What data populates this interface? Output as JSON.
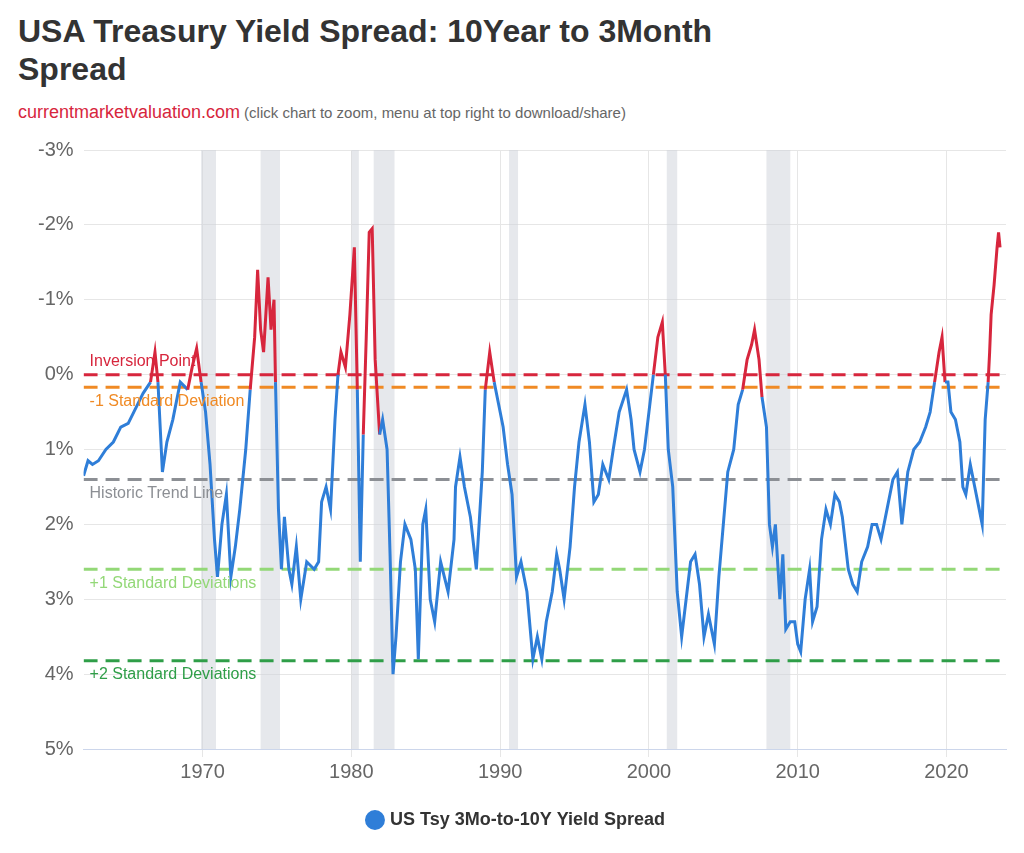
{
  "chart_data": {
    "type": "line",
    "title": "USA Treasury Yield Spread: 10Year to 3Month Spread",
    "source": "currentmarketvaluation.com",
    "subtitle": "(click chart to zoom, menu at top right to download/share)",
    "x": [
      1962.0,
      1962.3,
      1962.6,
      1963.0,
      1963.5,
      1964.0,
      1964.5,
      1965.0,
      1965.5,
      1966.0,
      1966.5,
      1966.8,
      1967.0,
      1967.3,
      1967.6,
      1968.0,
      1968.5,
      1969.0,
      1969.3,
      1969.6,
      1969.9,
      1970.2,
      1970.5,
      1970.8,
      1971.0,
      1971.3,
      1971.6,
      1971.9,
      1972.2,
      1972.5,
      1972.9,
      1973.2,
      1973.5,
      1973.7,
      1973.9,
      1974.1,
      1974.4,
      1974.6,
      1974.8,
      1974.9,
      1975.1,
      1975.3,
      1975.5,
      1975.8,
      1976.0,
      1976.3,
      1976.6,
      1977.0,
      1977.5,
      1977.8,
      1978.0,
      1978.3,
      1978.6,
      1978.9,
      1979.1,
      1979.3,
      1979.6,
      1979.9,
      1980.2,
      1980.4,
      1980.6,
      1980.8,
      1981.0,
      1981.2,
      1981.4,
      1981.6,
      1981.9,
      1982.1,
      1982.4,
      1982.6,
      1982.8,
      1983.0,
      1983.3,
      1983.6,
      1984.0,
      1984.3,
      1984.5,
      1984.8,
      1985.0,
      1985.3,
      1985.6,
      1986.0,
      1986.5,
      1986.9,
      1987.0,
      1987.3,
      1987.6,
      1988.0,
      1988.4,
      1988.8,
      1989.0,
      1989.3,
      1989.6,
      1989.9,
      1990.2,
      1990.5,
      1990.8,
      1991.1,
      1991.4,
      1991.8,
      1992.2,
      1992.5,
      1992.8,
      1993.1,
      1993.5,
      1993.8,
      1994.0,
      1994.3,
      1994.7,
      1995.0,
      1995.3,
      1995.7,
      1996.0,
      1996.3,
      1996.6,
      1996.9,
      1997.3,
      1997.6,
      1998.0,
      1998.5,
      1998.8,
      1999.0,
      1999.4,
      1999.7,
      2000.0,
      2000.3,
      2000.6,
      2000.9,
      2001.1,
      2001.3,
      2001.6,
      2001.9,
      2002.2,
      2002.5,
      2002.8,
      2003.1,
      2003.4,
      2003.7,
      2004.0,
      2004.4,
      2004.7,
      2005.0,
      2005.3,
      2005.7,
      2006.0,
      2006.3,
      2006.6,
      2006.9,
      2007.1,
      2007.4,
      2007.6,
      2007.9,
      2008.1,
      2008.3,
      2008.5,
      2008.8,
      2009.0,
      2009.2,
      2009.5,
      2009.8,
      2010.0,
      2010.2,
      2010.5,
      2010.8,
      2011.0,
      2011.3,
      2011.6,
      2011.9,
      2012.2,
      2012.5,
      2012.8,
      2013.0,
      2013.4,
      2013.7,
      2014.0,
      2014.3,
      2014.7,
      2015.0,
      2015.3,
      2015.6,
      2016.0,
      2016.4,
      2016.7,
      2017.0,
      2017.4,
      2017.8,
      2018.2,
      2018.6,
      2018.9,
      2019.2,
      2019.5,
      2019.7,
      2019.9,
      2020.1,
      2020.3,
      2020.6,
      2020.9,
      2021.1,
      2021.3,
      2021.6,
      2021.9,
      2022.2,
      2022.4,
      2022.6,
      2022.8,
      2022.9,
      2023.0,
      2023.2,
      2023.4,
      2023.5,
      2023.6
    ],
    "series": [
      {
        "name": "US Tsy 3Mo-to-10Y Yield Spread",
        "color": "#2f7ed8",
        "values": [
          1.35,
          1.15,
          1.2,
          1.15,
          1.0,
          0.9,
          0.7,
          0.65,
          0.45,
          0.25,
          0.1,
          -0.3,
          0.1,
          1.3,
          0.9,
          0.6,
          0.1,
          0.2,
          -0.1,
          -0.35,
          0.1,
          0.5,
          1.2,
          2.2,
          2.7,
          2.0,
          1.6,
          2.7,
          2.3,
          1.8,
          1.0,
          0.2,
          -0.5,
          -1.4,
          -0.6,
          -0.3,
          -1.3,
          -0.6,
          -1.0,
          0.1,
          1.8,
          2.6,
          1.9,
          2.6,
          2.8,
          2.3,
          3.0,
          2.5,
          2.6,
          2.5,
          1.7,
          1.5,
          1.8,
          0.6,
          0.0,
          -0.3,
          -0.1,
          -0.8,
          -1.7,
          0.2,
          2.5,
          0.8,
          -0.5,
          -1.9,
          -1.95,
          -0.2,
          0.8,
          0.6,
          1.0,
          2.4,
          4.0,
          3.5,
          2.5,
          2.0,
          2.2,
          2.6,
          3.8,
          2.0,
          1.8,
          3.0,
          3.3,
          2.5,
          2.9,
          2.2,
          1.5,
          1.1,
          1.5,
          1.9,
          2.6,
          1.3,
          0.2,
          -0.3,
          0.1,
          0.4,
          0.7,
          1.2,
          1.6,
          2.7,
          2.5,
          2.9,
          3.8,
          3.5,
          3.8,
          3.3,
          2.9,
          2.4,
          2.6,
          3.0,
          2.3,
          1.5,
          0.9,
          0.4,
          0.9,
          1.7,
          1.6,
          1.2,
          1.4,
          1.0,
          0.5,
          0.2,
          0.6,
          1.0,
          1.3,
          1.0,
          0.5,
          0.0,
          -0.5,
          -0.7,
          0.0,
          1.0,
          1.5,
          2.9,
          3.5,
          3.0,
          2.5,
          2.4,
          2.8,
          3.5,
          3.2,
          3.6,
          2.7,
          2.0,
          1.3,
          1.0,
          0.4,
          0.2,
          -0.2,
          -0.4,
          -0.6,
          -0.2,
          0.3,
          0.7,
          2.0,
          2.3,
          2.0,
          3.0,
          2.4,
          3.4,
          3.3,
          3.3,
          3.6,
          3.7,
          3.0,
          2.6,
          3.3,
          3.1,
          2.2,
          1.8,
          2.0,
          1.6,
          1.7,
          1.9,
          2.6,
          2.8,
          2.9,
          2.5,
          2.3,
          2.0,
          2.0,
          2.2,
          1.8,
          1.4,
          1.3,
          2.0,
          1.3,
          1.0,
          0.9,
          0.7,
          0.5,
          0.1,
          -0.3,
          -0.5,
          0.1,
          0.1,
          0.5,
          0.6,
          0.9,
          1.5,
          1.6,
          1.2,
          1.5,
          1.8,
          2.0,
          0.6,
          0.1,
          -0.3,
          -0.8,
          -1.2,
          -1.7,
          -1.9,
          -1.7
        ]
      }
    ],
    "reference_lines": [
      {
        "label": "Inversion Point",
        "value": 0,
        "color": "#d7263d"
      },
      {
        "label": "-1 Standard Deviation",
        "value": 0.17,
        "color": "#f08a24"
      },
      {
        "label": "Historic Trend Line",
        "value": 1.4,
        "color": "#8c8f94"
      },
      {
        "label": "+1 Standard Deviations",
        "value": 2.6,
        "color": "#93d877"
      },
      {
        "label": "+2 Standard Deviations",
        "value": 3.82,
        "color": "#2f9e48"
      }
    ],
    "recessions": [
      {
        "start": 1969.9,
        "end": 1970.9
      },
      {
        "start": 1973.9,
        "end": 1975.2
      },
      {
        "start": 1980.0,
        "end": 1980.5
      },
      {
        "start": 1981.5,
        "end": 1982.9
      },
      {
        "start": 1990.6,
        "end": 1991.2
      },
      {
        "start": 2001.2,
        "end": 2001.9
      },
      {
        "start": 2007.9,
        "end": 2009.5
      }
    ],
    "xlim": [
      1962,
      2024
    ],
    "xticks": [
      1970,
      1980,
      1990,
      2000,
      2010,
      2020
    ],
    "ylim": [
      5,
      -3
    ],
    "yticks": [
      {
        "value": -3,
        "label": "-3%"
      },
      {
        "value": -2,
        "label": "-2%"
      },
      {
        "value": -1,
        "label": "-1%"
      },
      {
        "value": 0,
        "label": "0%"
      },
      {
        "value": 1,
        "label": "1%"
      },
      {
        "value": 2,
        "label": "2%"
      },
      {
        "value": 3,
        "label": "3%"
      },
      {
        "value": 4,
        "label": "4%"
      },
      {
        "value": 5,
        "label": "5%"
      }
    ],
    "grid": true,
    "legend": "bottom"
  }
}
